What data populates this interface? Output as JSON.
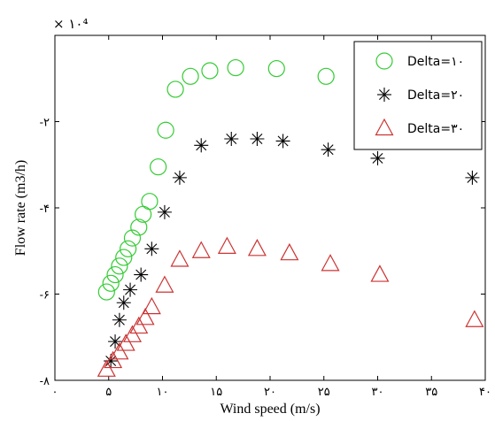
{
  "chart_data": {
    "type": "scatter",
    "xlabel": "Wind speed (m/s)",
    "ylabel": "Flow rate (m3/h)",
    "multiplier_label": "× ۱۰⁴",
    "xlim": [
      0,
      40
    ],
    "ylim": [
      -8,
      0
    ],
    "x_ticks": [
      0,
      5,
      10,
      15,
      20,
      25,
      30,
      35,
      40
    ],
    "x_tick_labels": [
      "۰",
      "۵",
      "۱۰",
      "۱۵",
      "۲۰",
      "۲۵",
      "۳۰",
      "۳۵",
      "۴۰"
    ],
    "y_ticks": [
      -8,
      -6,
      -4,
      -2
    ],
    "y_tick_labels": [
      "-۸",
      "-۶",
      "-۴",
      "-۲"
    ],
    "grid": false,
    "legend_position": "top-right",
    "series": [
      {
        "name": "Delta=۱۰",
        "marker": "circle",
        "color": "#33cc33",
        "points": [
          [
            4.8,
            -5.95
          ],
          [
            5.2,
            -5.75
          ],
          [
            5.6,
            -5.55
          ],
          [
            6.0,
            -5.35
          ],
          [
            6.4,
            -5.15
          ],
          [
            6.8,
            -4.95
          ],
          [
            7.2,
            -4.7
          ],
          [
            7.8,
            -4.45
          ],
          [
            8.2,
            -4.15
          ],
          [
            8.8,
            -3.85
          ],
          [
            9.6,
            -3.05
          ],
          [
            10.3,
            -2.2
          ],
          [
            11.2,
            -1.25
          ],
          [
            12.6,
            -0.95
          ],
          [
            14.4,
            -0.82
          ],
          [
            16.8,
            -0.75
          ],
          [
            20.6,
            -0.77
          ],
          [
            25.2,
            -0.95
          ],
          [
            29.6,
            -1.1
          ]
        ]
      },
      {
        "name": "Delta=۲۰",
        "marker": "star",
        "color": "#000000",
        "points": [
          [
            5.2,
            -7.55
          ],
          [
            5.6,
            -7.1
          ],
          [
            6.0,
            -6.6
          ],
          [
            6.4,
            -6.2
          ],
          [
            7.0,
            -5.9
          ],
          [
            8.0,
            -5.55
          ],
          [
            9.0,
            -4.95
          ],
          [
            10.2,
            -4.1
          ],
          [
            11.6,
            -3.3
          ],
          [
            13.6,
            -2.55
          ],
          [
            16.4,
            -2.4
          ],
          [
            18.8,
            -2.4
          ],
          [
            21.2,
            -2.45
          ],
          [
            25.4,
            -2.65
          ],
          [
            30.0,
            -2.85
          ],
          [
            38.8,
            -3.3
          ]
        ]
      },
      {
        "name": "Delta=۳۰",
        "marker": "triangle",
        "color": "#cc3333",
        "points": [
          [
            4.8,
            -7.75
          ],
          [
            5.4,
            -7.55
          ],
          [
            6.0,
            -7.35
          ],
          [
            6.6,
            -7.15
          ],
          [
            7.2,
            -6.95
          ],
          [
            7.8,
            -6.75
          ],
          [
            8.4,
            -6.55
          ],
          [
            9.0,
            -6.3
          ],
          [
            10.2,
            -5.8
          ],
          [
            11.6,
            -5.2
          ],
          [
            13.6,
            -5.0
          ],
          [
            16.0,
            -4.9
          ],
          [
            18.8,
            -4.95
          ],
          [
            21.8,
            -5.05
          ],
          [
            25.6,
            -5.3
          ],
          [
            30.2,
            -5.55
          ],
          [
            39.0,
            -6.6
          ]
        ]
      }
    ]
  }
}
